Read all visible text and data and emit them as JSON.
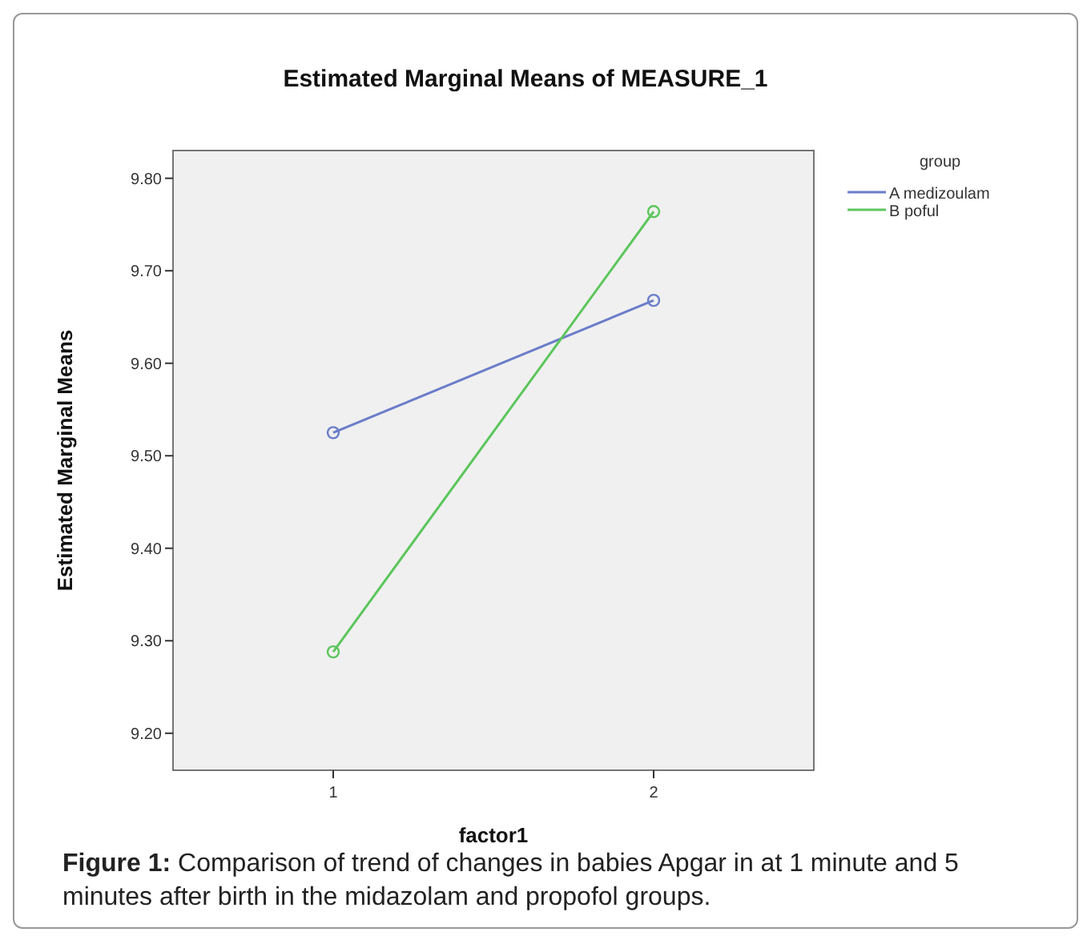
{
  "chart_data": {
    "type": "line",
    "title": "Estimated Marginal Means of MEASURE_1",
    "xlabel": "factor1",
    "ylabel": "Estimated Marginal Means",
    "legend_title": "group",
    "categories": [
      "1",
      "2"
    ],
    "series": [
      {
        "name": "A medizoulam",
        "color": "#6b7dc9",
        "values": [
          9.525,
          9.668
        ]
      },
      {
        "name": "B poful",
        "color": "#5cc65c",
        "values": [
          9.288,
          9.764
        ]
      }
    ],
    "ylim": [
      9.16,
      9.83
    ],
    "yticks": [
      {
        "value": 9.2,
        "label": "9.20"
      },
      {
        "value": 9.3,
        "label": "9.30"
      },
      {
        "value": 9.4,
        "label": "9.40"
      },
      {
        "value": 9.5,
        "label": "9.50"
      },
      {
        "value": 9.6,
        "label": "9.60"
      },
      {
        "value": 9.7,
        "label": "9.70"
      },
      {
        "value": 9.8,
        "label": "9.80"
      }
    ],
    "marker": "circle",
    "legend": "top right",
    "grid": false,
    "annotations": [
      "Figure 1: Comparison of trend of changes in babies Apgar in at 1 minute and 5 minutes after birth in the midazolam and propofol groups."
    ]
  }
}
